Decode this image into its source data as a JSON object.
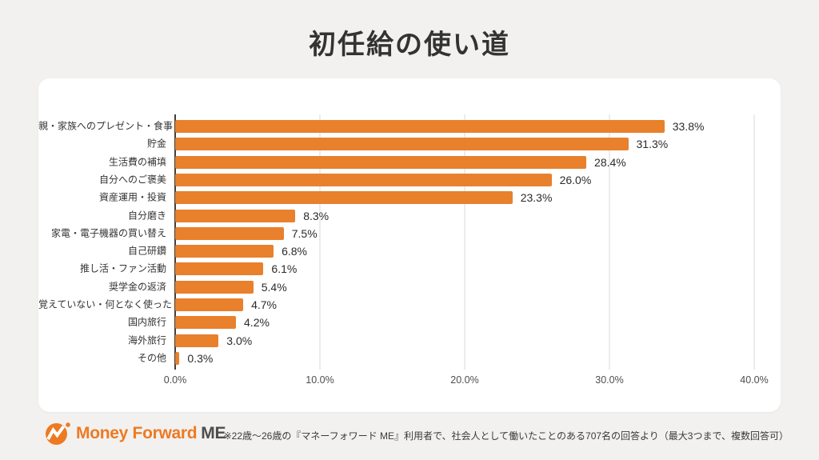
{
  "page": {
    "title": "初任給の使い道",
    "background_color": "#F2F1EF",
    "card_color": "#FFFFFF"
  },
  "chart_data": {
    "type": "bar",
    "orientation": "horizontal",
    "title": "初任給の使い道",
    "categories": [
      "親・家族へのプレゼント・食事",
      "貯金",
      "生活費の補填",
      "自分へのご褒美",
      "資産運用・投資",
      "自分磨き",
      "家電・電子機器の買い替え",
      "自己研鑽",
      "推し活・ファン活動",
      "奨学金の返済",
      "覚えていない・何となく使った",
      "国内旅行",
      "海外旅行",
      "その他"
    ],
    "values": [
      33.8,
      31.3,
      28.4,
      26.0,
      23.3,
      8.3,
      7.5,
      6.8,
      6.1,
      5.4,
      4.7,
      4.2,
      3.0,
      0.3
    ],
    "value_labels": [
      "33.8%",
      "31.3%",
      "28.4%",
      "26.0%",
      "23.3%",
      "8.3%",
      "7.5%",
      "6.8%",
      "6.1%",
      "5.4%",
      "4.7%",
      "4.2%",
      "3.0%",
      "0.3%"
    ],
    "xlabel": "",
    "ylabel": "",
    "xlim": [
      0,
      40
    ],
    "x_ticks": [
      "0.0%",
      "10.0%",
      "20.0%",
      "30.0%",
      "40.0%"
    ],
    "x_tick_values": [
      0,
      10,
      20,
      30,
      40
    ],
    "bar_color": "#E8802C",
    "gridline_color": "#D9D9D9",
    "axis_color": "#3F3F3F",
    "grid": true,
    "legend": false
  },
  "footer": {
    "logo": {
      "brand": "Money Forward",
      "suffix": "ME",
      "icon": "money-forward-logo-icon",
      "brand_color": "#ED7A23",
      "suffix_color": "#4D4D4D"
    },
    "note": "※22歳〜26歳の『マネーフォワード ME』利用者で、社会人として働いたことのある707名の回答より（最大3つまで、複数回答可）"
  }
}
